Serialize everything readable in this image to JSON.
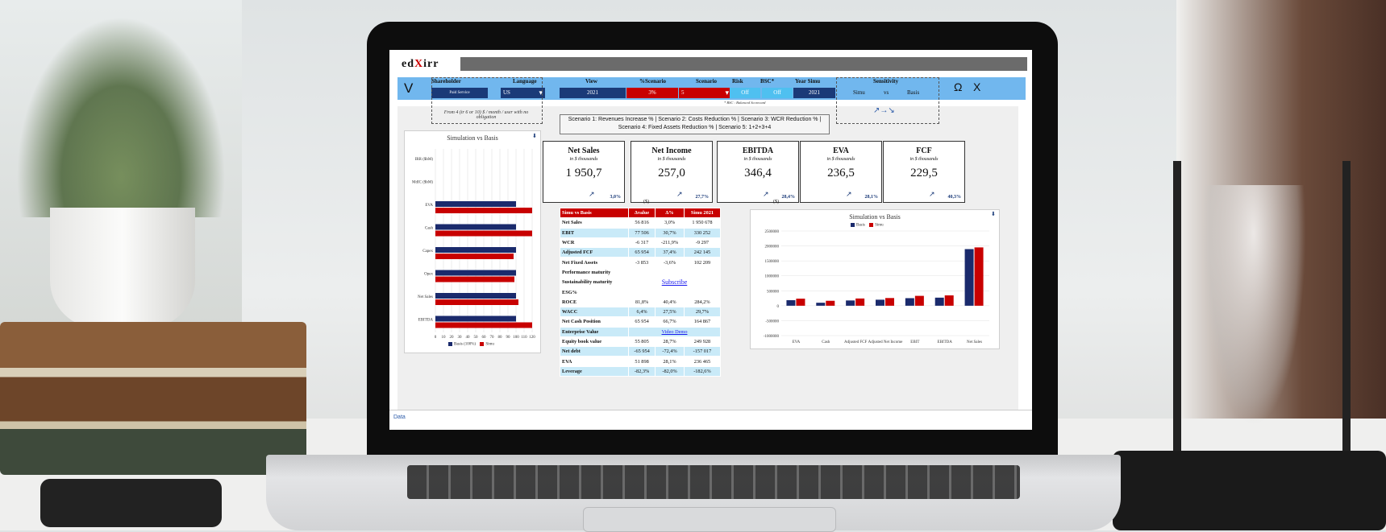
{
  "app": {
    "logo_prefix": "ed",
    "logo_mark": "X",
    "logo_suffix": "irr"
  },
  "ribbon": {
    "v_label": "V",
    "shareholder_label": "Shareholder",
    "paid_service": "Paid Service",
    "language_label": "Language",
    "language_value": "US",
    "view_label": "View",
    "view_value": "2021",
    "pct_scenario_label": "%Scenario",
    "pct_scenario_value": "3%",
    "scenario_label": "Scenario",
    "scenario_value": "5",
    "risk_label": "Risk",
    "risk_value": "Off",
    "bsc_label": "BSC*",
    "bsc_value": "Off",
    "year_simu_label": "Year Simu",
    "year_simu_value": "2021",
    "sensitivity_label": "Sensitivity",
    "simu": "Simu",
    "vs": "vs",
    "basis": "Basis",
    "omega": "Ω",
    "x_label": "X",
    "bsc_note": "* BSC : Balanced Scorecard",
    "price_note": "From 4 (tr 6 or 10) $ / month / user with no obligation",
    "scenario_desc": "Scenario 1: Revenues Increase % | Scenario 2: Costs Reduction % | Scenario 3: WCR Reduction % | Scenario 4: Fixed Assets Reduction % | Scenario 5: 1+2+3+4",
    "sensitivity_arrows": "↗→↘"
  },
  "kpis": [
    {
      "title": "Net Sales",
      "unit": "in $ thousands",
      "value": "1 950,7",
      "delta": "3,0%"
    },
    {
      "title": "Net Income",
      "unit": "in $ thousands",
      "value": "257,0",
      "delta": "27,7%"
    },
    {
      "title": "EBITDA",
      "unit": "in $ thousands",
      "value": "346,4",
      "delta": "28,4%"
    },
    {
      "title": "EVA",
      "unit": "in $ thousands",
      "value": "236,5",
      "delta": "28,1%"
    },
    {
      "title": "FCF",
      "unit": "in $ thousands",
      "value": "229,5",
      "delta": "40,3%"
    }
  ],
  "table": {
    "unit": "($)",
    "headers": [
      "Simu vs Basis",
      "Δvalue",
      "Δ%",
      "Simu 2021"
    ],
    "rows": [
      [
        "Net Sales",
        "56 816",
        "3,0%",
        "1 950 678"
      ],
      [
        "EBIT",
        "77 506",
        "30,7%",
        "330 252"
      ],
      [
        "WCR",
        "-6 317",
        "-211,9%",
        "-9 297"
      ],
      [
        "Adjusted FCF",
        "65 954",
        "37,4%",
        "242 145"
      ],
      [
        "Net Fixed Assets",
        "-3 853",
        "-3,6%",
        "102 209"
      ]
    ],
    "maturity_rows": [
      "Performance maturity",
      "Sustainability maturity",
      "ESG%"
    ],
    "subscribe": "Subscribe",
    "rows2": [
      [
        "ROCE",
        "81,8%",
        "40,4%",
        "284,2%"
      ],
      [
        "WACC",
        "6,4%",
        "27,5%",
        "29,7%"
      ],
      [
        "Net Cash Position",
        "65 954",
        "66,7%",
        "164 867"
      ]
    ],
    "enterprise_value": "Enterprise Value",
    "video_demo": "Video Demo",
    "rows3": [
      [
        "Equity book value",
        "55 805",
        "28,7%",
        "249 928"
      ],
      [
        "Net debt",
        "-65 954",
        "-72,4%",
        "-157 017"
      ],
      [
        "EVA",
        "51 898",
        "28,1%",
        "236 465"
      ],
      [
        "Leverage",
        "-82,3%",
        "-82,0%",
        "-182,6%"
      ]
    ]
  },
  "right_unit": "($)",
  "colors": {
    "basis": "#1a2a6c",
    "simu": "#c80000"
  },
  "chart_data": [
    {
      "type": "bar",
      "orientation": "horizontal",
      "title": "Simulation vs Basis",
      "categories": [
        "IRR ($bM)",
        "MdIC ($bM)",
        "EVA",
        "Cash",
        "Capex",
        "Opex",
        "Net Sales",
        "EBITDA"
      ],
      "series": [
        {
          "name": "Basis (100%)",
          "values": [
            0,
            0,
            100,
            100,
            100,
            100,
            100,
            100
          ]
        },
        {
          "name": "Simu",
          "values": [
            0,
            0,
            120,
            120,
            97,
            98,
            103,
            120
          ]
        }
      ],
      "xticks": [
        "0",
        "10",
        "20",
        "30",
        "40",
        "50",
        "60",
        "70",
        "80",
        "90",
        "100",
        "110",
        "120"
      ],
      "xlim": [
        0,
        120
      ],
      "legend": "bottom"
    },
    {
      "type": "bar",
      "title": "Simulation vs Basis",
      "categories": [
        "EVA",
        "Cash",
        "Adjusted FCF",
        "Adjusted Net Income",
        "EBIT",
        "EBITDA",
        "Net Sales"
      ],
      "series": [
        {
          "name": "Basis",
          "values": [
            185000,
            100000,
            176000,
            201000,
            253000,
            270000,
            1894000
          ]
        },
        {
          "name": "Simu",
          "values": [
            236000,
            165000,
            242000,
            257000,
            330000,
            346000,
            1951000
          ]
        }
      ],
      "yticks": [
        "2500000",
        "2000000",
        "1500000",
        "1000000",
        "500000",
        "0",
        "-500000",
        "-1000000"
      ],
      "ylim": [
        -1000000,
        2500000
      ],
      "legend": "top"
    }
  ],
  "footer": {
    "tab": "Data"
  }
}
